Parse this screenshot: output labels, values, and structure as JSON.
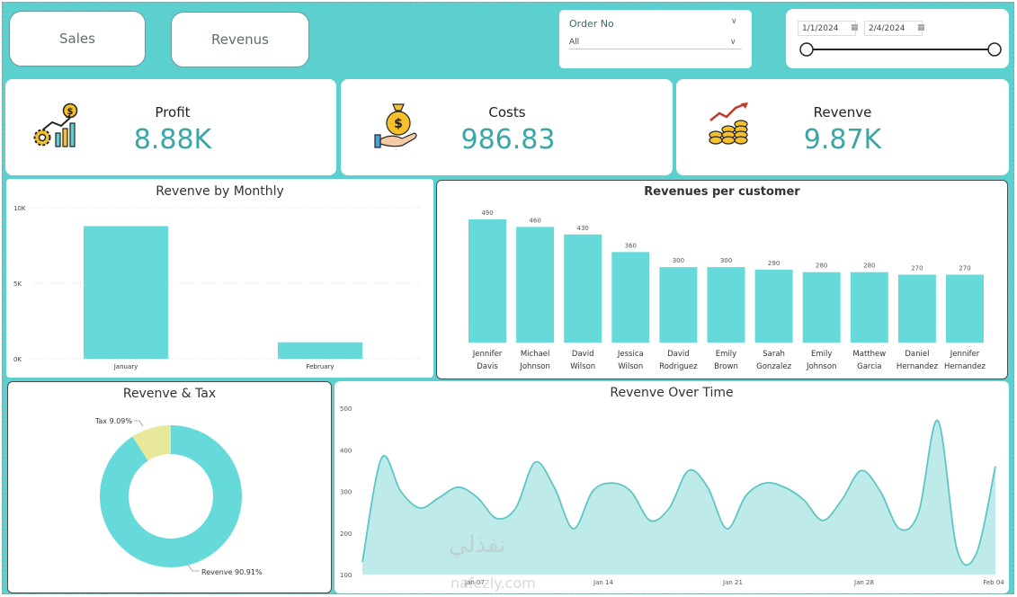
{
  "nav": {
    "sales_label": "Sales",
    "revenus_label": "Revenus"
  },
  "slicer_order": {
    "title": "Order No",
    "value": "All"
  },
  "date_range": {
    "start": "1/1/2024",
    "end": "2/4/2024"
  },
  "kpis": {
    "profit": {
      "label": "Profit",
      "value": "8.88K",
      "icon": "gear-chart-icon"
    },
    "costs": {
      "label": "Costs",
      "value": "986.83",
      "icon": "money-bag-hand-icon"
    },
    "revenve": {
      "label": "Revenve",
      "value": "9.87K",
      "icon": "coins-growth-icon"
    }
  },
  "colors": {
    "accent": "#5ccfcf",
    "bar": "#66dada",
    "tax": "#e8e89a",
    "kpi_value": "#3aa6a6"
  },
  "chart_data": [
    {
      "id": "monthly",
      "type": "bar",
      "title": "Revenve by Monthly",
      "categories": [
        "January",
        "February"
      ],
      "values": [
        8780,
        1090
      ],
      "ylim": [
        0,
        10000
      ],
      "yticks": [
        0,
        5000,
        10000
      ],
      "ytick_labels": [
        "0K",
        "5K",
        "10K"
      ],
      "grid": true
    },
    {
      "id": "customer",
      "type": "bar",
      "title": "Revenues per customer",
      "categories": [
        [
          "Jennifer",
          "Davis"
        ],
        [
          "Michael",
          "Johnson"
        ],
        [
          "David",
          "Wilson"
        ],
        [
          "Jessica",
          "Wilson"
        ],
        [
          "David",
          "Rodriguez"
        ],
        [
          "Emily",
          "Brown"
        ],
        [
          "Sarah",
          "Gonzalez"
        ],
        [
          "Emily",
          "Johnson"
        ],
        [
          "Matthew",
          "Garcia"
        ],
        [
          "Daniel",
          "Hernandez"
        ],
        [
          "Jennifer",
          "Hernandez"
        ]
      ],
      "values": [
        490,
        460,
        430,
        360,
        300,
        300,
        290,
        280,
        280,
        270,
        270
      ],
      "data_labels": [
        "490",
        "460",
        "430",
        "360",
        "300",
        "300",
        "290",
        "280",
        "280",
        "270",
        "270"
      ]
    },
    {
      "id": "tax",
      "type": "pie",
      "title": "Revenve & Tax",
      "slices": [
        {
          "label": "Revenve",
          "value": 90.91,
          "text": "Revenve 90.91%"
        },
        {
          "label": "Tax",
          "value": 9.09,
          "text": "Tax 9.09%"
        }
      ]
    },
    {
      "id": "time",
      "type": "area",
      "title": "Revenve Over Time",
      "x_day_labels": [
        "Jan 07",
        "Jan 14",
        "Jan 21",
        "Jan 28",
        "Feb 04"
      ],
      "ylim": [
        100,
        500
      ],
      "yticks": [
        100,
        200,
        300,
        400,
        500
      ],
      "values": [
        130,
        380,
        300,
        260,
        285,
        310,
        285,
        235,
        260,
        370,
        310,
        210,
        300,
        320,
        300,
        230,
        260,
        350,
        310,
        210,
        290,
        320,
        310,
        280,
        230,
        280,
        350,
        300,
        210,
        250,
        470,
        160,
        150,
        360
      ]
    }
  ],
  "watermark": {
    "arabic": "نفذلي",
    "latin": "nafezly.com"
  }
}
